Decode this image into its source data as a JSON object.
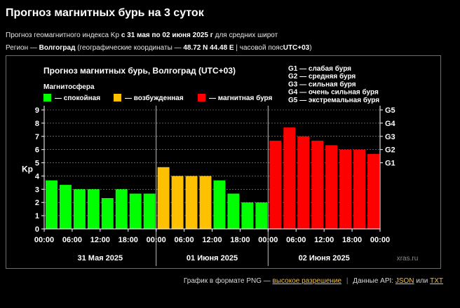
{
  "page": {
    "title": "Прогноз магнитных бурь на 3 суток",
    "line1_prefix": "Прогноз геомагнитного индекса Kp",
    "line1_period": "с 31 мая по 02 июня 2025 г",
    "line1_suffix": "для средних широт",
    "line2_prefix": "Регион —",
    "line2_region": "Волгоград",
    "line2_coords_prefix": "(географические координаты —",
    "line2_coords": "48.72 N 44.48 E",
    "line2_tz_prefix": "| часовой пояс",
    "line2_tz": "UTC+03",
    "line2_tz_suffix": ")"
  },
  "footer": {
    "text1": "График в формате PNG —",
    "link_hires": "высокое разрешение",
    "sep": "|",
    "text2": "Данные API:",
    "link_json": "JSON",
    "text3": "или",
    "link_txt": "TXT"
  },
  "chart_data": {
    "type": "bar",
    "title": "Прогноз магнитных бурь, Волгоград (UTC+03)",
    "legend_title": "Магнитосфера",
    "legend": [
      {
        "label": "— спокойная",
        "color": "#00ff00"
      },
      {
        "label": "— возбужденная",
        "color": "#ffc000"
      },
      {
        "label": "— магнитная буря",
        "color": "#ff0000"
      }
    ],
    "storm_scale": [
      "G1 — слабая буря",
      "G2 — средняя буря",
      "G3 — сильная буря",
      "G4 — очень сильная буря",
      "G5 — экстремальная буря"
    ],
    "ylabel": "Kp",
    "ylim": [
      0,
      9
    ],
    "yticks": [
      "0",
      "1",
      "2",
      "3",
      "4",
      "5",
      "6",
      "7",
      "8",
      "9"
    ],
    "right_ticks": [
      {
        "label": "G1",
        "kp": 5
      },
      {
        "label": "G2",
        "kp": 6
      },
      {
        "label": "G3",
        "kp": 7
      },
      {
        "label": "G4",
        "kp": 8
      },
      {
        "label": "G5",
        "kp": 9
      }
    ],
    "days": [
      "31 Мая 2025",
      "01 Июня 2025",
      "02 Июня 2025"
    ],
    "time_ticks": [
      "00:00",
      "06:00",
      "12:00",
      "18:00"
    ],
    "values": [
      [
        3.67,
        3.33,
        3.0,
        3.0,
        2.33,
        3.0,
        2.67,
        2.67
      ],
      [
        4.67,
        4.0,
        4.0,
        4.0,
        3.67,
        2.67,
        2.0,
        2.0
      ],
      [
        6.67,
        7.67,
        7.0,
        6.67,
        6.33,
        6.0,
        6.0,
        5.67
      ]
    ],
    "watermark": "xras.ru",
    "thresholds": {
      "active": 4,
      "storm": 5
    },
    "colors": {
      "quiet": "#00ff00",
      "active": "#ffc000",
      "storm": "#ff0000",
      "grid": "#9a9a9a",
      "axis": "#ffffff"
    }
  }
}
